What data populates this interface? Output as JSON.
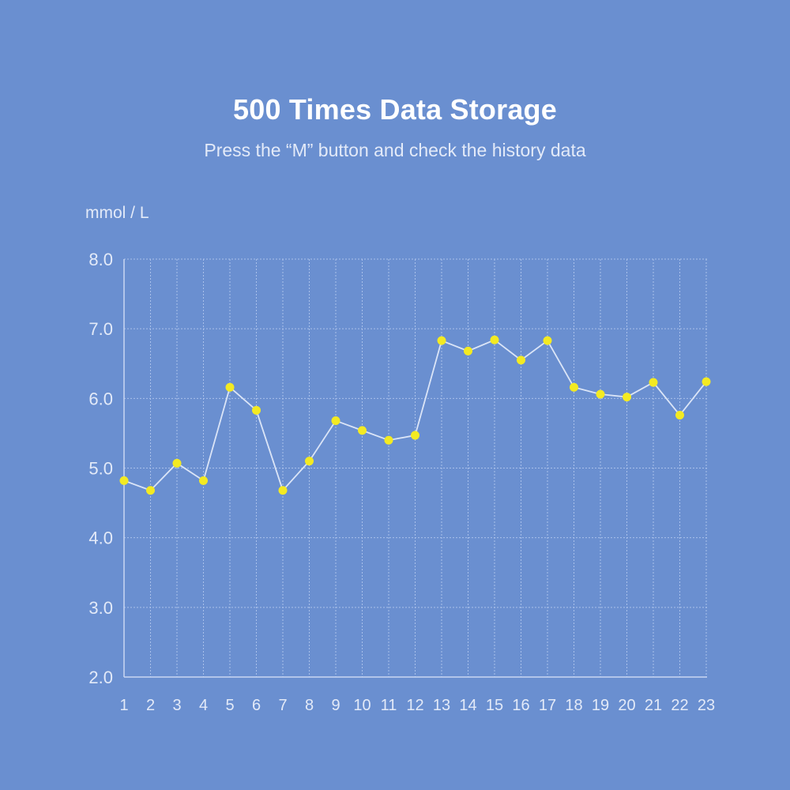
{
  "header": {
    "title": "500 Times Data Storage",
    "subtitle": "Press the “M” button and check the history data"
  },
  "colors": {
    "background": "#6a8fd0",
    "grid": "#a9c0ea",
    "axis": "#c9d7f2",
    "line": "#dbe5f7",
    "point": "#f3ea22",
    "text": "#e3eaf8"
  },
  "chart_data": {
    "type": "line",
    "ylabel": "mmol / L",
    "xlabel": "",
    "ylim": [
      2.0,
      8.0
    ],
    "y_ticks": [
      "2.0",
      "3.0",
      "4.0",
      "5.0",
      "6.0",
      "7.0",
      "8.0"
    ],
    "grid": true,
    "x": [
      "1",
      "2",
      "3",
      "4",
      "5",
      "6",
      "7",
      "8",
      "9",
      "10",
      "11",
      "12",
      "13",
      "14",
      "15",
      "16",
      "17",
      "18",
      "19",
      "20",
      "21",
      "22",
      "23"
    ],
    "series": [
      {
        "values": [
          4.82,
          4.68,
          5.07,
          4.82,
          6.16,
          5.83,
          4.68,
          5.1,
          5.68,
          5.54,
          5.4,
          5.47,
          6.83,
          6.68,
          6.84,
          6.55,
          6.83,
          6.16,
          6.06,
          6.02,
          6.23,
          5.76,
          6.24
        ]
      }
    ]
  }
}
